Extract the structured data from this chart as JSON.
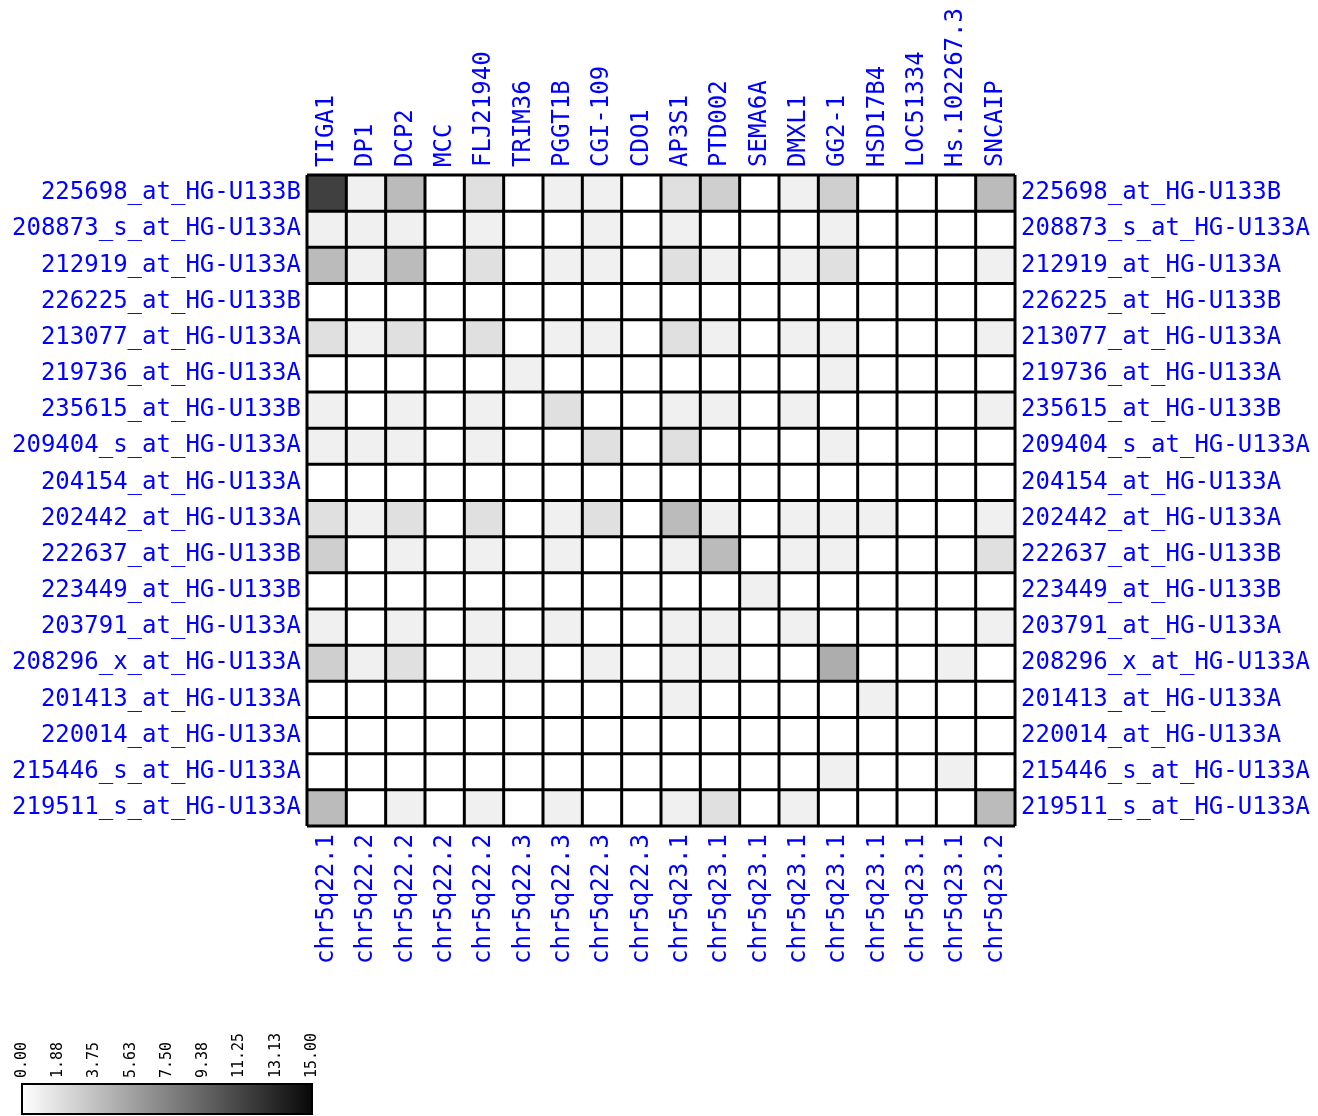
{
  "chart_data": {
    "type": "heatmap",
    "categories": [
      "TIGA1",
      "DP1",
      "DCP2",
      "MCC",
      "FLJ21940",
      "TRIM36",
      "PGGT1B",
      "CGI-109",
      "CDO1",
      "AP3S1",
      "PTD002",
      "SEMA6A",
      "DMXL1",
      "GG2-1",
      "HSD17B4",
      "LOC51334",
      "Hs.102267.3",
      "SNCAIP"
    ],
    "annotations": [
      "chr5q22.1",
      "chr5q22.2",
      "chr5q22.2",
      "chr5q22.2",
      "chr5q22.2",
      "chr5q22.3",
      "chr5q22.3",
      "chr5q22.3",
      "chr5q22.3",
      "chr5q23.1",
      "chr5q23.1",
      "chr5q23.1",
      "chr5q23.1",
      "chr5q23.1",
      "chr5q23.1",
      "chr5q23.1",
      "chr5q23.1",
      "chr5q23.2"
    ],
    "y_categories": [
      "225698_at_HG-U133B",
      "208873_s_at_HG-U133A",
      "212919_at_HG-U133A",
      "226225_at_HG-U133B",
      "213077_at_HG-U133A",
      "219736_at_HG-U133A",
      "235615_at_HG-U133B",
      "209404_s_at_HG-U133A",
      "204154_at_HG-U133A",
      "202442_at_HG-U133A",
      "222637_at_HG-U133B",
      "223449_at_HG-U133B",
      "203791_at_HG-U133A",
      "208296_x_at_HG-U133A",
      "201413_at_HG-U133A",
      "220014_at_HG-U133A",
      "215446_s_at_HG-U133A",
      "219511_s_at_HG-U133A"
    ],
    "y2_categories": [
      "225698_at_HG-U133B",
      "208873_s_at_HG-U133A",
      "212919_at_HG-U133A",
      "226225_at_HG-U133B",
      "213077_at_HG-U133A",
      "219736_at_HG-U133A",
      "235615_at_HG-U133B",
      "209404_s_at_HG-U133A",
      "204154_at_HG-U133A",
      "202442_at_HG-U133A",
      "222637_at_HG-U133B",
      "223449_at_HG-U133B",
      "203791_at_HG-U133A",
      "208296_x_at_HG-U133A",
      "201413_at_HG-U133A",
      "220014_at_HG-U133A",
      "215446_s_at_HG-U133A",
      "219511_s_at_HG-U133A"
    ],
    "cells": [
      [
        11.6,
        0.9,
        4.1,
        0,
        1.9,
        0,
        0.9,
        0.9,
        0,
        1.9,
        2.9,
        0,
        0.9,
        2.9,
        0,
        0,
        0,
        4.1
      ],
      [
        0.9,
        0.9,
        0.9,
        0,
        0.9,
        0,
        0,
        0.9,
        0,
        0.9,
        0,
        0,
        0,
        0.9,
        0,
        0,
        0,
        0
      ],
      [
        4.1,
        0.9,
        4.1,
        0,
        1.9,
        0,
        0.9,
        0.9,
        0,
        1.9,
        0.9,
        0,
        0.9,
        1.9,
        0,
        0,
        0,
        0.9
      ],
      [
        0,
        0,
        0,
        0,
        0,
        0,
        0,
        0,
        0,
        0,
        0,
        0,
        0,
        0,
        0,
        0,
        0,
        0
      ],
      [
        1.9,
        0.9,
        1.9,
        0,
        1.9,
        0,
        0.9,
        0.9,
        0,
        1.9,
        0.9,
        0,
        0.9,
        0.9,
        0,
        0,
        0,
        0.9
      ],
      [
        0,
        0,
        0,
        0,
        0,
        0.9,
        0,
        0,
        0,
        0,
        0,
        0,
        0,
        0.9,
        0,
        0,
        0,
        0
      ],
      [
        0.9,
        0,
        0.9,
        0,
        0.9,
        0,
        1.9,
        0,
        0,
        0.9,
        0.9,
        0,
        0.9,
        0,
        0,
        0,
        0,
        0.9
      ],
      [
        0.9,
        0.9,
        0.9,
        0,
        0.9,
        0,
        0,
        1.9,
        0,
        1.9,
        0,
        0,
        0,
        0.9,
        0,
        0,
        0,
        0
      ],
      [
        0,
        0,
        0,
        0,
        0,
        0,
        0,
        0,
        0,
        0,
        0,
        0,
        0,
        0,
        0,
        0,
        0,
        0
      ],
      [
        1.9,
        0.9,
        1.9,
        0,
        1.9,
        0,
        0.9,
        1.9,
        0,
        4.1,
        0.9,
        0,
        0.9,
        0.9,
        0.9,
        0,
        0,
        0.9
      ],
      [
        2.9,
        0,
        0.9,
        0,
        0.9,
        0,
        0.9,
        0,
        0,
        0.9,
        4.1,
        0,
        0.9,
        0.9,
        0,
        0,
        0,
        1.9
      ],
      [
        0,
        0,
        0,
        0,
        0,
        0,
        0,
        0,
        0,
        0,
        0,
        0.9,
        0,
        0,
        0,
        0,
        0,
        0
      ],
      [
        0.9,
        0,
        0.9,
        0,
        0.9,
        0,
        0.9,
        0,
        0,
        0.9,
        0.9,
        0,
        0.9,
        0,
        0,
        0,
        0,
        0.9
      ],
      [
        2.9,
        0.9,
        1.9,
        0,
        0.9,
        0.9,
        0,
        0.9,
        0,
        0.9,
        0.9,
        0,
        0,
        5.0,
        0,
        0,
        0.9,
        0
      ],
      [
        0,
        0,
        0,
        0,
        0,
        0,
        0,
        0,
        0,
        0.9,
        0,
        0,
        0,
        0,
        0.9,
        0,
        0,
        0
      ],
      [
        0,
        0,
        0,
        0,
        0,
        0,
        0,
        0,
        0,
        0,
        0,
        0,
        0,
        0,
        0,
        0,
        0,
        0
      ],
      [
        0,
        0,
        0,
        0,
        0,
        0,
        0,
        0,
        0,
        0,
        0,
        0,
        0,
        0.9,
        0,
        0,
        0.9,
        0
      ],
      [
        4.1,
        0,
        0.9,
        0,
        0.9,
        0,
        0.9,
        0,
        0,
        0.9,
        1.9,
        0,
        0.9,
        0,
        0,
        0,
        0,
        4.1
      ]
    ],
    "clim": [
      0,
      15
    ],
    "cticks": [
      {
        "value": 0,
        "label": "0.00"
      },
      1.88,
      3.75,
      5.63,
      {
        "value": 7.5,
        "label": "7.50"
      },
      9.38,
      11.25,
      13.13,
      {
        "value": 15,
        "label": "15.00"
      }
    ]
  }
}
